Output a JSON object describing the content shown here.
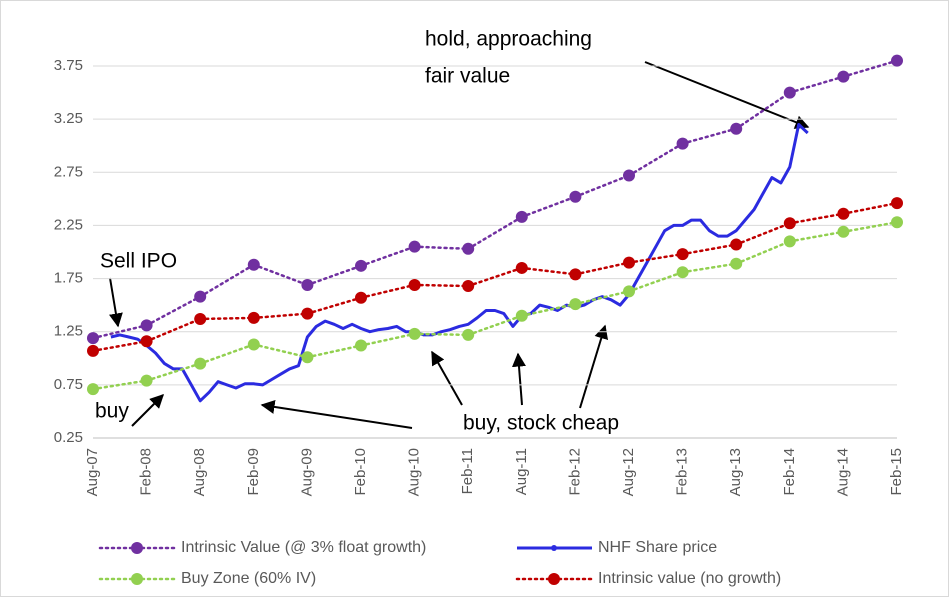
{
  "chart_data": {
    "type": "line",
    "categories": [
      "Aug-07",
      null,
      null,
      null,
      null,
      null,
      "Feb-08",
      null,
      null,
      null,
      null,
      null,
      "Aug-08",
      null,
      null,
      null,
      null,
      null,
      "Feb-09",
      null,
      null,
      null,
      null,
      null,
      "Aug-09",
      null,
      null,
      null,
      null,
      null,
      "Feb-10",
      null,
      null,
      null,
      null,
      null,
      "Aug-10",
      null,
      null,
      null,
      null,
      null,
      "Feb-11",
      null,
      null,
      null,
      null,
      null,
      "Aug-11",
      null,
      null,
      null,
      null,
      null,
      "Feb-12",
      null,
      null,
      null,
      null,
      null,
      "Aug-12",
      null,
      null,
      null,
      null,
      null,
      "Feb-13",
      null,
      null,
      null,
      null,
      null,
      "Aug-13",
      null,
      null,
      null,
      null,
      null,
      "Feb-14",
      null,
      null,
      null,
      null,
      null,
      "Aug-14",
      null,
      null,
      null,
      null,
      null,
      "Feb-15"
    ],
    "series": [
      {
        "name": "Intrinsic Value (@ 3% float growth)",
        "color": "#7030a0",
        "style": "dotted-markers",
        "values": [
          1.19,
          null,
          null,
          null,
          null,
          null,
          1.31,
          null,
          null,
          null,
          null,
          null,
          1.58,
          null,
          null,
          null,
          null,
          null,
          1.88,
          null,
          null,
          null,
          null,
          null,
          1.69,
          null,
          null,
          null,
          null,
          null,
          1.87,
          null,
          null,
          null,
          null,
          null,
          2.05,
          null,
          null,
          null,
          null,
          null,
          2.03,
          null,
          null,
          null,
          null,
          null,
          2.33,
          null,
          null,
          null,
          null,
          null,
          2.52,
          null,
          null,
          null,
          null,
          null,
          2.72,
          null,
          null,
          null,
          null,
          null,
          3.02,
          null,
          null,
          null,
          null,
          null,
          3.16,
          null,
          null,
          null,
          null,
          null,
          3.5,
          null,
          null,
          null,
          null,
          null,
          3.65,
          null,
          null,
          null,
          null,
          null,
          3.8
        ]
      },
      {
        "name": "NHF Share price",
        "color": "#2b2be0",
        "style": "solid",
        "values": [
          null,
          null,
          1.2,
          1.22,
          1.2,
          1.18,
          1.12,
          1.05,
          0.95,
          0.9,
          0.9,
          0.75,
          0.6,
          0.68,
          0.78,
          0.75,
          0.72,
          0.76,
          0.76,
          0.75,
          0.8,
          0.85,
          0.9,
          0.93,
          1.2,
          1.3,
          1.35,
          1.32,
          1.28,
          1.32,
          1.28,
          1.25,
          1.27,
          1.28,
          1.3,
          1.25,
          1.25,
          1.22,
          1.22,
          1.25,
          1.27,
          1.3,
          1.32,
          1.38,
          1.45,
          1.45,
          1.42,
          1.3,
          1.4,
          1.42,
          1.5,
          1.48,
          1.45,
          1.5,
          1.48,
          1.5,
          1.55,
          1.58,
          1.55,
          1.5,
          1.6,
          1.75,
          1.9,
          2.05,
          2.2,
          2.25,
          2.25,
          2.3,
          2.3,
          2.2,
          2.15,
          2.15,
          2.2,
          2.3,
          2.4,
          2.55,
          2.7,
          2.65,
          2.8,
          3.2,
          3.12,
          null,
          null,
          null,
          null,
          null,
          null,
          null,
          null,
          null,
          null
        ]
      },
      {
        "name": "Buy Zone (60% IV)",
        "color": "#92d050",
        "style": "dotted-markers",
        "values": [
          0.71,
          null,
          null,
          null,
          null,
          null,
          0.79,
          null,
          null,
          null,
          null,
          null,
          0.95,
          null,
          null,
          null,
          null,
          null,
          1.13,
          null,
          null,
          null,
          null,
          null,
          1.01,
          null,
          null,
          null,
          null,
          null,
          1.12,
          null,
          null,
          null,
          null,
          null,
          1.23,
          null,
          null,
          null,
          null,
          null,
          1.22,
          null,
          null,
          null,
          null,
          null,
          1.4,
          null,
          null,
          null,
          null,
          null,
          1.51,
          null,
          null,
          null,
          null,
          null,
          1.63,
          null,
          null,
          null,
          null,
          null,
          1.81,
          null,
          null,
          null,
          null,
          null,
          1.89,
          null,
          null,
          null,
          null,
          null,
          2.1,
          null,
          null,
          null,
          null,
          null,
          2.19,
          null,
          null,
          null,
          null,
          null,
          2.28
        ]
      },
      {
        "name": "Intrinsic value (no growth)",
        "color": "#c00000",
        "style": "dotted-markers",
        "values": [
          1.07,
          null,
          null,
          null,
          null,
          null,
          1.16,
          null,
          null,
          null,
          null,
          null,
          1.37,
          null,
          null,
          null,
          null,
          null,
          1.38,
          null,
          null,
          null,
          null,
          null,
          1.42,
          null,
          null,
          null,
          null,
          null,
          1.57,
          null,
          null,
          null,
          null,
          null,
          1.69,
          null,
          null,
          null,
          null,
          null,
          1.68,
          null,
          null,
          null,
          null,
          null,
          1.85,
          null,
          null,
          null,
          null,
          null,
          1.79,
          null,
          null,
          null,
          null,
          null,
          1.9,
          null,
          null,
          null,
          null,
          null,
          1.98,
          null,
          null,
          null,
          null,
          null,
          2.07,
          null,
          null,
          null,
          null,
          null,
          2.27,
          null,
          null,
          null,
          null,
          null,
          2.36,
          null,
          null,
          null,
          null,
          null,
          2.46
        ]
      }
    ],
    "ylim": [
      0.25,
      3.75
    ],
    "yticks": [
      0.25,
      0.75,
      1.25,
      1.75,
      2.25,
      2.75,
      3.25,
      3.75
    ],
    "grid": true,
    "legend": "bottom",
    "annotations": [
      "hold, approaching",
      "fair value",
      "Sell IPO",
      "buy",
      "buy, stock  cheap"
    ]
  }
}
